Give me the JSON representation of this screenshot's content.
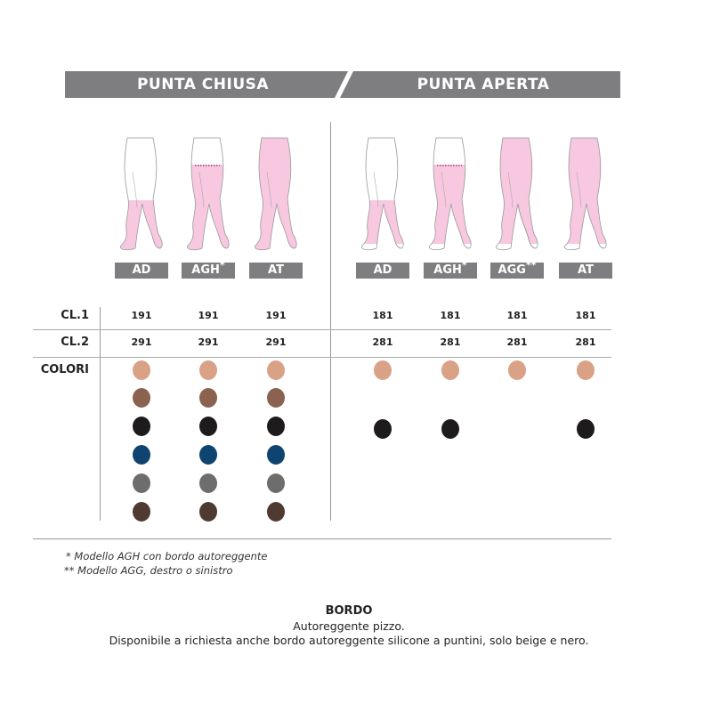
{
  "header": {
    "left": "PUNTA CHIUSA",
    "right": "PUNTA APERTA"
  },
  "columns": [
    {
      "label": "AD",
      "mark": "",
      "group": "chiusa",
      "style": "knee",
      "cl1": "191",
      "cl2": "291",
      "colors": [
        "#d9a287",
        "#8b6250",
        "#1e1b1c",
        "#0f4470",
        "#6d6d6e",
        "#4f3a31"
      ]
    },
    {
      "label": "AGH",
      "mark": "*",
      "group": "chiusa",
      "style": "thigh",
      "cl1": "191",
      "cl2": "291",
      "colors": [
        "#d9a287",
        "#8b6250",
        "#1e1b1c",
        "#0f4470",
        "#6d6d6e",
        "#4f3a31"
      ]
    },
    {
      "label": "AT",
      "mark": "",
      "group": "chiusa",
      "style": "full",
      "cl1": "191",
      "cl2": "291",
      "colors": [
        "#d9a287",
        "#8b6250",
        "#1e1b1c",
        "#0f4470",
        "#6d6d6e",
        "#4f3a31"
      ]
    },
    {
      "label": "AD",
      "mark": "",
      "group": "aperta",
      "style": "knee",
      "cl1": "181",
      "cl2": "281",
      "colors": [
        "#d9a287",
        null,
        "#1e1b1c"
      ]
    },
    {
      "label": "AGH",
      "mark": "*",
      "group": "aperta",
      "style": "thigh",
      "cl1": "181",
      "cl2": "281",
      "colors": [
        "#d9a287",
        null,
        "#1e1b1c"
      ]
    },
    {
      "label": "AGG",
      "mark": "**",
      "group": "aperta",
      "style": "single",
      "cl1": "181",
      "cl2": "281",
      "colors": [
        "#d9a287"
      ]
    },
    {
      "label": "AT",
      "mark": "",
      "group": "aperta",
      "style": "full",
      "cl1": "181",
      "cl2": "281",
      "colors": [
        "#d9a287",
        null,
        "#1e1b1c"
      ]
    }
  ],
  "rows": {
    "cl1": "CL.1",
    "cl2": "CL.2",
    "colori": "COLORI"
  },
  "notes": [
    "* Modello AGH con bordo autoreggente",
    "** Modello AGG, destro o sinistro"
  ],
  "bordo": {
    "title": "BORDO",
    "line1": "Autoreggente pizzo.",
    "line2": "Disponibile a richiesta anche bordo autoreggente silicone a puntini, solo beige e nero."
  },
  "stocking_color": "#f7c8e0"
}
